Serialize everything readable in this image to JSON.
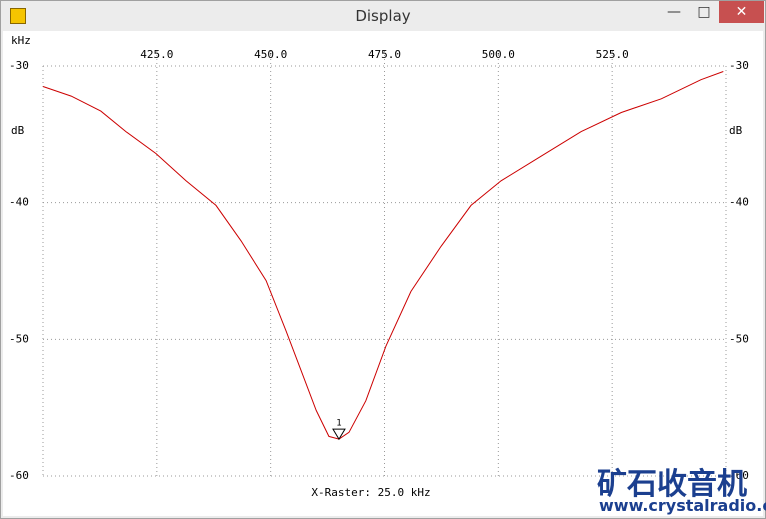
{
  "window": {
    "title": "Display"
  },
  "watermark": {
    "name": "矿石收音机",
    "url": "www.crystalradio.cn"
  },
  "chart_data": {
    "type": "line",
    "x_label": "kHz",
    "y_label": "dB",
    "annotation": "X-Raster: 25.0 kHz",
    "xlim": [
      400,
      550
    ],
    "ylim": [
      -60,
      -30
    ],
    "xticks": [
      {
        "value": 425,
        "label": "425.0"
      },
      {
        "value": 450,
        "label": "450.0"
      },
      {
        "value": 475,
        "label": "475.0"
      },
      {
        "value": 500,
        "label": "500.0"
      },
      {
        "value": 525,
        "label": "525.0"
      }
    ],
    "yticks": [
      -30,
      -40,
      -50,
      -60
    ],
    "grid": true,
    "series": [
      {
        "color": "#cc0000",
        "x": [
          400,
          406.2,
          412.7,
          418.2,
          424.8,
          431.4,
          438,
          443.5,
          449,
          453.4,
          456.7,
          460,
          462.8,
          465,
          467.2,
          470.9,
          475.3,
          480.8,
          487.4,
          494,
          500.6,
          509.4,
          518.2,
          527,
          535.8,
          544.5,
          549.4
        ],
        "values": [
          -31.5,
          -32.2,
          -33.3,
          -34.8,
          -36.4,
          -38.4,
          -40.2,
          -42.8,
          -45.7,
          -49.4,
          -52.3,
          -55.2,
          -57.1,
          -57.3,
          -56.8,
          -54.5,
          -50.5,
          -46.5,
          -43.2,
          -40.2,
          -38.4,
          -36.6,
          -34.8,
          -33.4,
          -32.4,
          -31,
          -30.4
        ]
      }
    ],
    "marker": {
      "label": "1",
      "x": 465,
      "y": -57.3
    }
  }
}
